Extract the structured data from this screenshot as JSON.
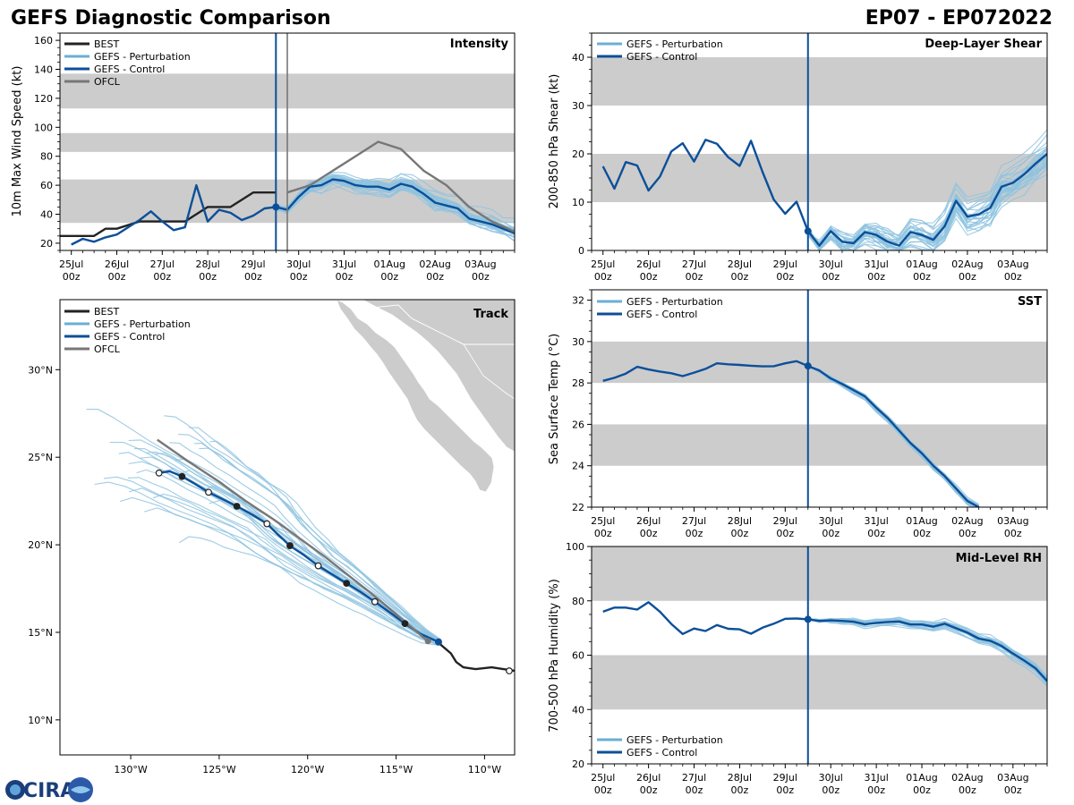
{
  "header": {
    "left_title": "GEFS Diagnostic Comparison",
    "right_title": "EP07 - EP072022"
  },
  "logo_text": "CIRA",
  "colors": {
    "best": "#222222",
    "perturbation": "#8ec3df",
    "perturbation_legend": "#6baed6",
    "control": "#0c4f99",
    "ofcl": "#777777",
    "band": "#cccccc",
    "land": "#cccccc"
  },
  "legend_labels": {
    "best": "BEST",
    "perturbation": "GEFS - Perturbation",
    "control": "GEFS - Control",
    "ofcl": "OFCL"
  },
  "time_ticks": [
    "25Jul\n00z",
    "26Jul\n00z",
    "27Jul\n00z",
    "28Jul\n00z",
    "29Jul\n00z",
    "30Jul\n00z",
    "31Jul\n00z",
    "01Aug\n00z",
    "02Aug\n00z",
    "03Aug\n00z"
  ],
  "chart_data": [
    {
      "id": "intensity",
      "type": "line",
      "title": "Intensity",
      "ylabel": "10m Max Wind Speed (kt)",
      "xlim": [
        -0.25,
        9.75
      ],
      "ylim": [
        15,
        165
      ],
      "yticks": [
        20,
        40,
        60,
        80,
        100,
        120,
        140,
        160
      ],
      "bands": [
        [
          34,
          64
        ],
        [
          83,
          96
        ],
        [
          113,
          137
        ]
      ],
      "init_time": 4.5,
      "ofcl_line": 4.75,
      "series": [
        {
          "name": "BEST",
          "x": [
            -0.25,
            0.5,
            0.75,
            1.0,
            1.5,
            2.0,
            2.5,
            3.0,
            3.5,
            4.0,
            4.5
          ],
          "values": [
            25,
            25,
            30,
            30,
            35,
            35,
            35,
            45,
            45,
            55,
            55
          ]
        },
        {
          "name": "GEFS - Control",
          "x": [
            0.0,
            0.25,
            0.5,
            0.75,
            1.0,
            1.25,
            1.5,
            1.75,
            2.0,
            2.25,
            2.5,
            2.75,
            3.0,
            3.25,
            3.5,
            3.75,
            4.0,
            4.25,
            4.5,
            4.75,
            5.0,
            5.25,
            5.5,
            5.75,
            6.0,
            6.25,
            6.5,
            6.75,
            7.0,
            7.25,
            7.5,
            7.75,
            8.0,
            8.25,
            8.5,
            8.75,
            9.0,
            9.25,
            9.5,
            9.75
          ],
          "values": [
            19,
            23,
            21,
            24,
            26,
            31,
            36,
            42,
            35,
            29,
            31,
            60,
            35,
            43,
            41,
            36,
            39,
            44,
            45,
            43,
            52,
            59,
            60,
            64,
            63,
            60,
            59,
            59,
            57,
            61,
            59,
            54,
            48,
            46,
            44,
            37,
            35,
            33,
            30,
            27
          ]
        },
        {
          "name": "OFCL",
          "x": [
            4.75,
            5.25,
            5.75,
            6.25,
            6.75,
            7.25,
            7.75,
            8.25,
            8.75,
            9.25,
            9.75
          ],
          "values": [
            55,
            60,
            70,
            80,
            90,
            85,
            70,
            60,
            45,
            35,
            28
          ]
        }
      ]
    },
    {
      "id": "shear",
      "type": "line",
      "title": "Deep-Layer Shear",
      "ylabel": "200-850 hPa Shear (kt)",
      "xlim": [
        -0.25,
        9.75
      ],
      "ylim": [
        0,
        45
      ],
      "yticks": [
        0,
        10,
        20,
        30,
        40
      ],
      "bands": [
        [
          10,
          20
        ],
        [
          30,
          40
        ]
      ],
      "init_time": 4.5,
      "series": [
        {
          "name": "GEFS - Control",
          "x": [
            0.0,
            0.25,
            0.5,
            0.75,
            1.0,
            1.25,
            1.5,
            1.75,
            2.0,
            2.25,
            2.5,
            2.75,
            3.0,
            3.25,
            3.5,
            3.75,
            4.0,
            4.25,
            4.5,
            4.75,
            5.0,
            5.25,
            5.5,
            5.75,
            6.0,
            6.25,
            6.5,
            6.75,
            7.0,
            7.25,
            7.5,
            7.75,
            8.0,
            8.25,
            8.5,
            8.75,
            9.0,
            9.25,
            9.5,
            9.75
          ],
          "values": [
            17.4,
            12.8,
            18.3,
            17.6,
            12.4,
            15.3,
            20.5,
            22.2,
            18.4,
            22.9,
            22.1,
            19.3,
            17.5,
            22.7,
            16.3,
            10.5,
            7.6,
            10.1,
            4.0,
            1.0,
            4.0,
            1.8,
            1.5,
            3.8,
            3.2,
            1.8,
            1.0,
            3.8,
            3.2,
            2.2,
            5.0,
            10.3,
            7.0,
            7.5,
            8.8,
            13.2,
            14.0,
            15.8,
            18.0,
            20.0
          ]
        }
      ]
    },
    {
      "id": "sst",
      "type": "line",
      "title": "SST",
      "ylabel": "Sea Surface Temp (°C)",
      "xlim": [
        -0.25,
        9.75
      ],
      "ylim": [
        22,
        32.5
      ],
      "yticks": [
        22,
        24,
        26,
        28,
        30,
        32
      ],
      "bands": [
        [
          24,
          26
        ],
        [
          28,
          30
        ]
      ],
      "init_time": 4.5,
      "series": [
        {
          "name": "GEFS - Control",
          "x": [
            0.0,
            0.25,
            0.5,
            0.75,
            1.0,
            1.25,
            1.5,
            1.75,
            2.0,
            2.25,
            2.5,
            2.75,
            3.0,
            3.25,
            3.5,
            3.75,
            4.0,
            4.25,
            4.5,
            4.75,
            5.0,
            5.25,
            5.5,
            5.75,
            6.0,
            6.25,
            6.5,
            6.75,
            7.0,
            7.25,
            7.5,
            7.75,
            8.0,
            8.25
          ],
          "values": [
            28.1,
            28.25,
            28.45,
            28.78,
            28.65,
            28.55,
            28.47,
            28.33,
            28.5,
            28.68,
            28.95,
            28.9,
            28.87,
            28.83,
            28.8,
            28.81,
            28.95,
            29.05,
            28.82,
            28.6,
            28.22,
            27.95,
            27.65,
            27.35,
            26.8,
            26.3,
            25.7,
            25.1,
            24.6,
            24.0,
            23.5,
            22.9,
            22.3,
            22.0
          ]
        }
      ]
    },
    {
      "id": "rh",
      "type": "line",
      "title": "Mid-Level RH",
      "ylabel": "700-500 hPa Humidity (%)",
      "xlim": [
        -0.25,
        9.75
      ],
      "ylim": [
        20,
        100
      ],
      "yticks": [
        20,
        40,
        60,
        80,
        100
      ],
      "bands": [
        [
          40,
          60
        ],
        [
          80,
          100
        ]
      ],
      "init_time": 4.5,
      "series": [
        {
          "name": "GEFS - Control",
          "x": [
            0.0,
            0.25,
            0.5,
            0.75,
            1.0,
            1.25,
            1.5,
            1.75,
            2.0,
            2.25,
            2.5,
            2.75,
            3.0,
            3.25,
            3.5,
            3.75,
            4.0,
            4.25,
            4.5,
            4.75,
            5.0,
            5.25,
            5.5,
            5.75,
            6.0,
            6.25,
            6.5,
            6.75,
            7.0,
            7.25,
            7.5,
            7.75,
            8.0,
            8.25,
            8.5,
            8.75,
            9.0,
            9.25,
            9.5,
            9.75
          ],
          "values": [
            76,
            77.5,
            77.5,
            76.8,
            79.5,
            76,
            71.5,
            67.8,
            69.8,
            68.9,
            71.1,
            69.7,
            69.5,
            67.9,
            70.1,
            71.6,
            73.4,
            73.5,
            73.2,
            72.6,
            72.8,
            72.6,
            72.3,
            71.4,
            71.9,
            72.2,
            72.4,
            71.3,
            71.3,
            70.5,
            71.6,
            69.9,
            68.3,
            66.1,
            65.3,
            63.4,
            60.6,
            58.0,
            55.1,
            50.5
          ]
        }
      ]
    },
    {
      "id": "track",
      "type": "line",
      "title": "Track",
      "xlim": [
        -134,
        -108.3
      ],
      "ylim": [
        8,
        34
      ],
      "xticks": [
        -130,
        -125,
        -120,
        -115,
        -110
      ],
      "xtick_labels": [
        "130°W",
        "125°W",
        "120°W",
        "115°W",
        "110°W"
      ],
      "yticks": [
        10,
        15,
        20,
        25,
        30
      ],
      "ytick_labels": [
        "10°N",
        "15°N",
        "20°N",
        "25°N",
        "30°N"
      ],
      "series": [
        {
          "name": "BEST",
          "lon": [
            -108.3,
            -108.6,
            -109.6,
            -110.5,
            -111.2,
            -111.6,
            -111.9,
            -112.6
          ],
          "lat": [
            12.8,
            12.85,
            13.0,
            12.9,
            13.0,
            13.3,
            13.8,
            14.4
          ]
        },
        {
          "name": "GEFS - Control",
          "lon": [
            -112.6,
            -113.6,
            -114.5,
            -115.3,
            -116.2,
            -117.0,
            -117.8,
            -118.6,
            -119.4,
            -120.2,
            -121.0,
            -121.7,
            -122.3,
            -123.1,
            -124.0,
            -124.8,
            -125.6,
            -126.4,
            -127.1,
            -127.8,
            -128.4
          ],
          "lat": [
            14.45,
            14.9,
            15.5,
            16.1,
            16.75,
            17.3,
            17.8,
            18.3,
            18.8,
            19.4,
            19.95,
            20.6,
            21.2,
            21.7,
            22.2,
            22.6,
            23.0,
            23.5,
            23.9,
            24.2,
            24.1
          ]
        },
        {
          "name": "OFCL",
          "lon": [
            -113.2,
            -114.5,
            -116.0,
            -117.5,
            -119.0,
            -120.5,
            -122.0,
            -123.5,
            -125.0,
            -126.8,
            -128.5
          ],
          "lat": [
            14.5,
            15.6,
            16.9,
            18.1,
            19.3,
            20.4,
            21.5,
            22.5,
            23.6,
            24.8,
            26.0
          ]
        }
      ]
    }
  ]
}
